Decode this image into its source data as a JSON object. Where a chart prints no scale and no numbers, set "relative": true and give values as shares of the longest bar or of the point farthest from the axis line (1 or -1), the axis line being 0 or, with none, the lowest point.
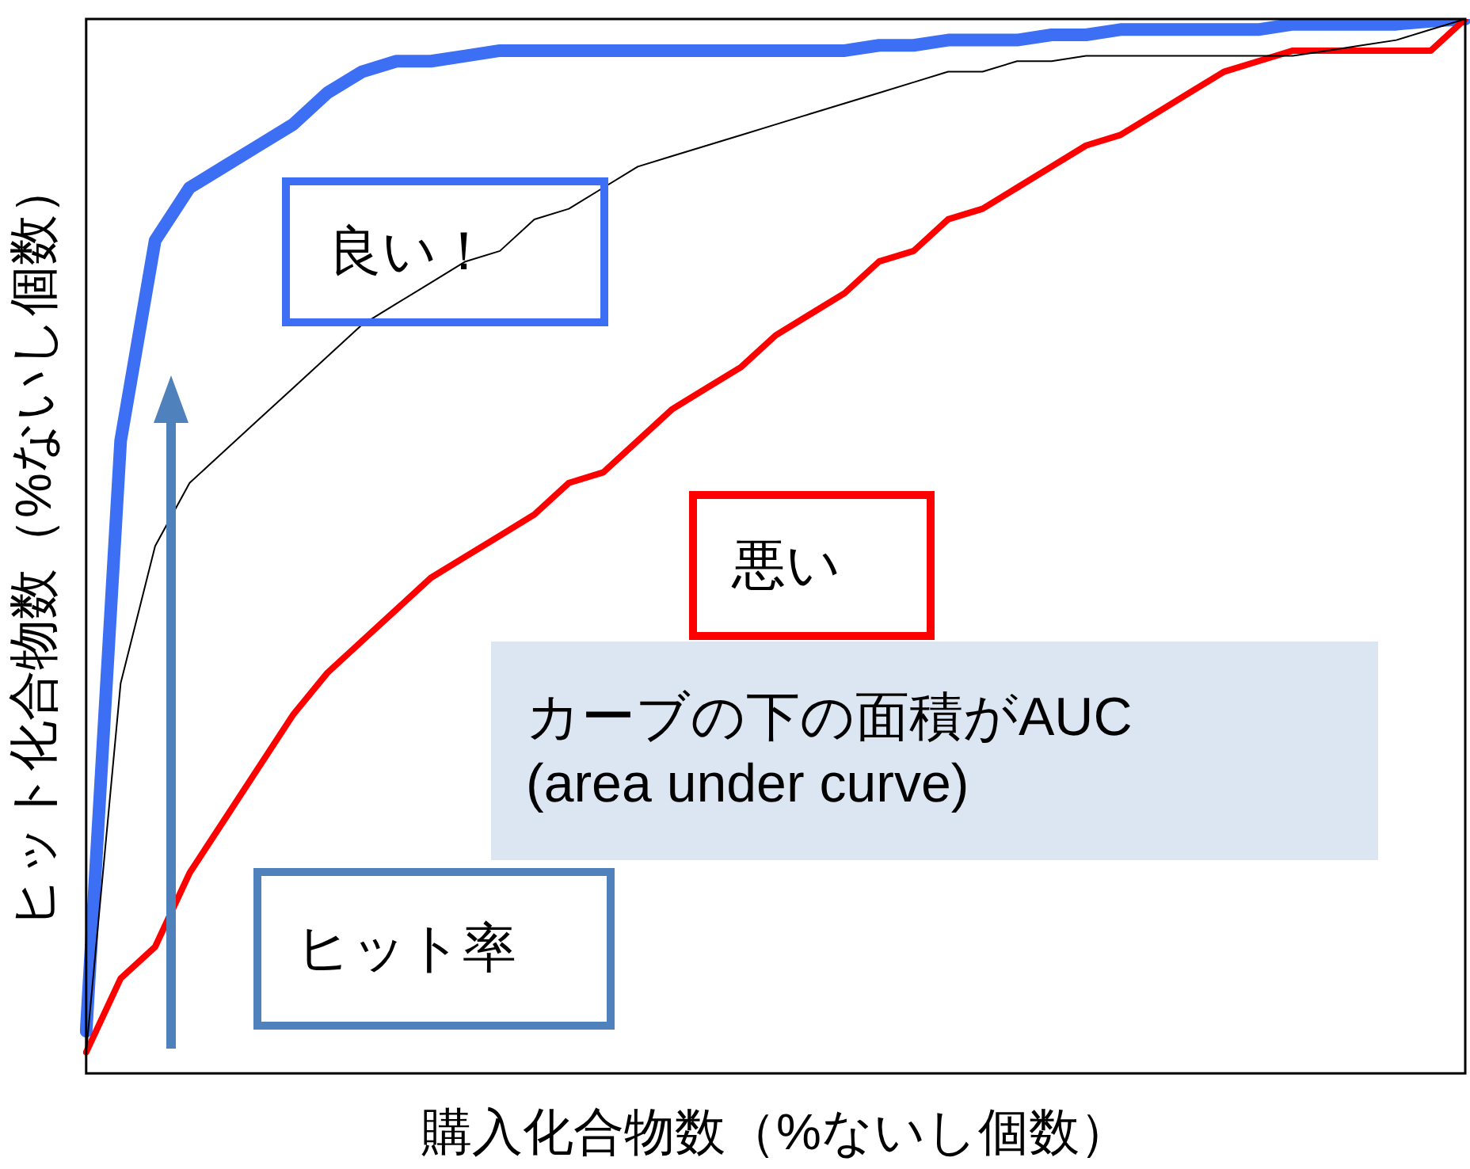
{
  "chart_data": {
    "type": "line",
    "relative": true,
    "xlabel": "購入化合物数（%ないし個数）",
    "ylabel": "ヒット化合物数（%ないし個数）",
    "categories": [
      null,
      null,
      null,
      null,
      null,
      null,
      null,
      null,
      null,
      null,
      null,
      null,
      null,
      null,
      null,
      null,
      null,
      null,
      null,
      null,
      null,
      null,
      null,
      null,
      null,
      null,
      null,
      null,
      null,
      null,
      null,
      null,
      null,
      null,
      null,
      null,
      null,
      null,
      null,
      null,
      null
    ],
    "series": [
      {
        "color": "#000000",
        "values": [
          0.02,
          0.37,
          0.5,
          0.56,
          0.59,
          0.62,
          0.65,
          0.68,
          0.71,
          0.73,
          0.75,
          0.77,
          0.78,
          0.81,
          0.82,
          0.84,
          0.86,
          0.87,
          0.88,
          0.89,
          0.9,
          0.91,
          0.92,
          0.93,
          0.94,
          0.95,
          0.95,
          0.96,
          0.96,
          0.965,
          0.965,
          0.965,
          0.965,
          0.965,
          0.965,
          0.965,
          0.97,
          0.975,
          0.98,
          0.99,
          1.0
        ]
      },
      {
        "color": "#ff0000",
        "values": [
          0.02,
          0.09,
          0.12,
          0.19,
          0.24,
          0.29,
          0.34,
          0.38,
          0.41,
          0.44,
          0.47,
          0.49,
          0.51,
          0.53,
          0.56,
          0.57,
          0.6,
          0.63,
          0.65,
          0.67,
          0.7,
          0.72,
          0.74,
          0.77,
          0.78,
          0.81,
          0.82,
          0.84,
          0.86,
          0.88,
          0.89,
          0.91,
          0.93,
          0.95,
          0.96,
          0.97,
          0.97,
          0.97,
          0.97,
          0.97,
          1.0
        ]
      },
      {
        "color": "#3d6ff5",
        "values": [
          0.04,
          0.6,
          0.79,
          0.84,
          0.86,
          0.88,
          0.9,
          0.93,
          0.95,
          0.96,
          0.96,
          0.965,
          0.97,
          0.97,
          0.97,
          0.97,
          0.97,
          0.97,
          0.97,
          0.97,
          0.97,
          0.97,
          0.97,
          0.975,
          0.975,
          0.98,
          0.98,
          0.98,
          0.985,
          0.985,
          0.99,
          0.99,
          0.99,
          0.99,
          0.99,
          0.995,
          0.995,
          0.995,
          0.995,
          0.998,
          1.0
        ]
      }
    ],
    "annotations": [
      "良い！",
      "悪い",
      "カーブの下の面積がAUC\n(area under curve)",
      "ヒット率"
    ],
    "grid": false,
    "legend": false,
    "marker": "none",
    "line_style": "solid"
  }
}
